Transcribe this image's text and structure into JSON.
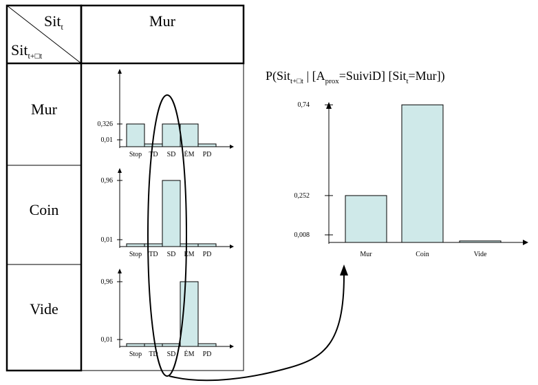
{
  "table": {
    "header_col": "Mur",
    "corner_top": {
      "text": "Sit",
      "sub": "t"
    },
    "corner_bottom": {
      "text": "Sit",
      "sub": "t+□t"
    },
    "rows": [
      "Mur",
      "Coin",
      "Vide"
    ]
  },
  "small_charts": {
    "categories": [
      "Stop",
      "TD",
      "SD",
      "ÉM",
      "PD"
    ],
    "charts": [
      {
        "row": "Mur",
        "values": [
          0.326,
          0.01,
          0.326,
          0.326,
          0.01
        ],
        "ticks": [
          "0,326",
          "0,01"
        ]
      },
      {
        "row": "Coin",
        "values": [
          0.01,
          0.01,
          0.96,
          0.01,
          0.01
        ],
        "ticks": [
          "0,96",
          "0,01"
        ]
      },
      {
        "row": "Vide",
        "values": [
          0.01,
          0.01,
          0.01,
          0.96,
          0.01
        ],
        "ticks": [
          "0,96",
          "0,01"
        ]
      }
    ]
  },
  "chart_data": {
    "type": "bar",
    "title_parts": {
      "p": "P(Sit",
      "sub1": "t+□t",
      "mid": " | [A",
      "sub2": "prox",
      "end": "=SuiviD] [Sit",
      "sub3": "t",
      "close": "=Mur])"
    },
    "categories": [
      "Mur",
      "Coin",
      "Vide"
    ],
    "values": [
      0.252,
      0.74,
      0.008
    ],
    "ticks": [
      "0,74",
      "0,252",
      "0,008"
    ],
    "ylim": [
      0,
      0.8
    ]
  },
  "colors": {
    "bar_fill": "#cfe9e9",
    "stroke": "#000000"
  }
}
